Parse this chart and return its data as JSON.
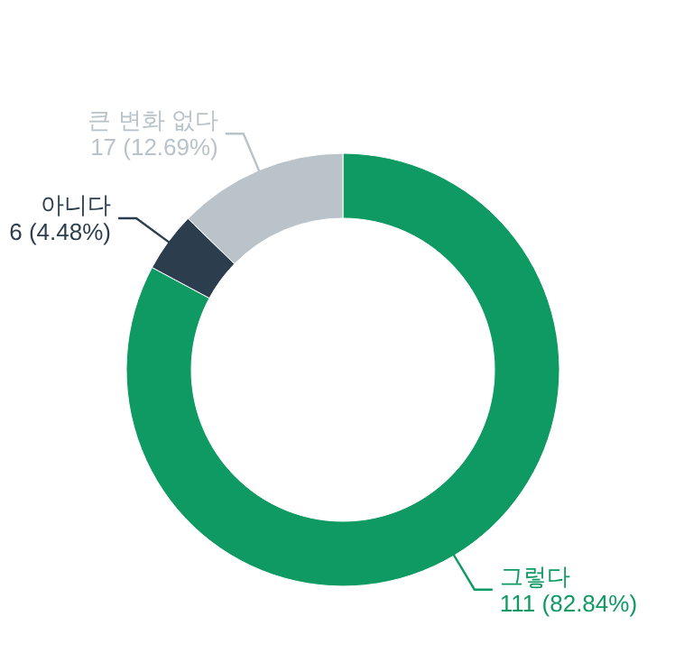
{
  "chart_data": {
    "type": "donut",
    "categories": [
      "그렇다",
      "아니다",
      "큰 변화 없다"
    ],
    "values": [
      111,
      6,
      17
    ],
    "colors": [
      "#0f9a63",
      "#2c3e4e",
      "#b9c3c9"
    ],
    "value_labels": [
      "111 (82.84%)",
      "6 (4.48%)",
      "17 (12.69%)"
    ]
  }
}
